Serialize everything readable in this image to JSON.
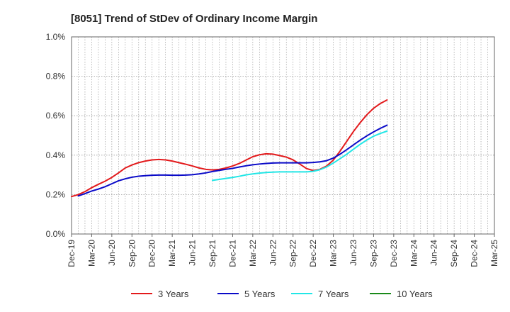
{
  "chart_data": {
    "type": "line",
    "title": "[8051]  Trend of StDev of Ordinary Income Margin",
    "xlabel": "",
    "ylabel": "",
    "x_ticks": [
      "Dec-19",
      "Mar-20",
      "Jun-20",
      "Sep-20",
      "Dec-20",
      "Mar-21",
      "Jun-21",
      "Sep-21",
      "Dec-21",
      "Mar-22",
      "Jun-22",
      "Sep-22",
      "Dec-22",
      "Mar-23",
      "Jun-23",
      "Sep-23",
      "Dec-23",
      "Mar-24",
      "Jun-24",
      "Sep-24",
      "Dec-24",
      "Mar-25"
    ],
    "y_ticks": [
      "0.0%",
      "0.2%",
      "0.4%",
      "0.6%",
      "0.8%",
      "1.0%"
    ],
    "ylim": [
      0,
      1.0
    ],
    "y_unit": "%",
    "grid": "dotted",
    "legend_position": "bottom",
    "series": [
      {
        "name": "3 Years",
        "color": "#e31a1c",
        "values": [
          0.19,
          0.2,
          0.215,
          0.235,
          0.252,
          0.268,
          0.287,
          0.31,
          0.335,
          0.35,
          0.362,
          0.37,
          0.376,
          0.378,
          0.376,
          0.37,
          0.362,
          0.354,
          0.345,
          0.335,
          0.328,
          0.325,
          0.328,
          0.335,
          0.345,
          0.358,
          0.375,
          0.392,
          0.402,
          0.407,
          0.405,
          0.398,
          0.39,
          0.376,
          0.355,
          0.332,
          0.322,
          0.328,
          0.345,
          0.375,
          0.42,
          0.47,
          0.52,
          0.565,
          0.605,
          0.638,
          0.662,
          0.68
        ]
      },
      {
        "name": "5 Years",
        "color": "#0a0ac8",
        "values": [
          null,
          0.193,
          0.205,
          0.218,
          0.228,
          0.24,
          0.255,
          0.27,
          0.28,
          0.288,
          0.293,
          0.296,
          0.298,
          0.299,
          0.299,
          0.298,
          0.298,
          0.299,
          0.301,
          0.305,
          0.31,
          0.317,
          0.323,
          0.328,
          0.333,
          0.34,
          0.346,
          0.351,
          0.355,
          0.358,
          0.36,
          0.361,
          0.361,
          0.361,
          0.361,
          0.361,
          0.363,
          0.366,
          0.372,
          0.385,
          0.405,
          0.428,
          0.452,
          0.476,
          0.498,
          0.518,
          0.536,
          0.552
        ]
      },
      {
        "name": "7 Years",
        "color": "#22e6e6",
        "values": [
          null,
          null,
          null,
          null,
          null,
          null,
          null,
          null,
          null,
          null,
          null,
          null,
          null,
          null,
          null,
          null,
          null,
          null,
          null,
          null,
          null,
          0.272,
          0.277,
          0.282,
          0.287,
          0.293,
          0.3,
          0.305,
          0.309,
          0.312,
          0.314,
          0.315,
          0.315,
          0.315,
          0.315,
          0.315,
          0.318,
          0.326,
          0.34,
          0.36,
          0.382,
          0.405,
          0.43,
          0.455,
          0.477,
          0.496,
          0.51,
          0.522
        ]
      },
      {
        "name": "10 Years",
        "color": "#1a8a1a",
        "values": []
      }
    ]
  }
}
